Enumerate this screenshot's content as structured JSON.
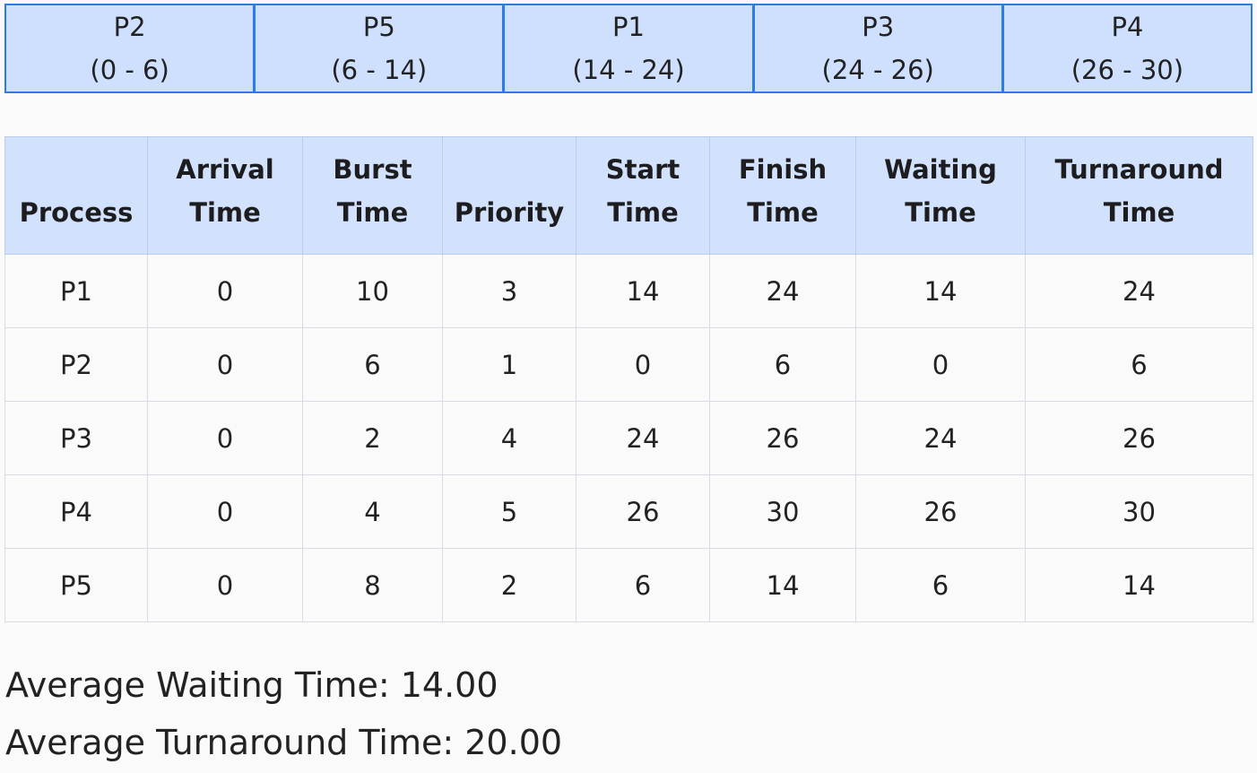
{
  "gantt": [
    {
      "process": "P2",
      "range": "(0 - 6)"
    },
    {
      "process": "P5",
      "range": "(6 - 14)"
    },
    {
      "process": "P1",
      "range": "(14 - 24)"
    },
    {
      "process": "P3",
      "range": "(24 - 26)"
    },
    {
      "process": "P4",
      "range": "(26 - 30)"
    }
  ],
  "table": {
    "headers": [
      {
        "l1": "",
        "l2": "Process"
      },
      {
        "l1": "Arrival",
        "l2": "Time"
      },
      {
        "l1": "Burst",
        "l2": "Time"
      },
      {
        "l1": "",
        "l2": "Priority"
      },
      {
        "l1": "Start",
        "l2": "Time"
      },
      {
        "l1": "Finish",
        "l2": "Time"
      },
      {
        "l1": "Waiting",
        "l2": "Time"
      },
      {
        "l1": "Turnaround",
        "l2": "Time"
      }
    ],
    "rows": [
      [
        "P1",
        "0",
        "10",
        "3",
        "14",
        "24",
        "14",
        "24"
      ],
      [
        "P2",
        "0",
        "6",
        "1",
        "0",
        "6",
        "0",
        "6"
      ],
      [
        "P3",
        "0",
        "2",
        "4",
        "24",
        "26",
        "24",
        "26"
      ],
      [
        "P4",
        "0",
        "4",
        "5",
        "26",
        "30",
        "26",
        "30"
      ],
      [
        "P5",
        "0",
        "8",
        "2",
        "6",
        "14",
        "6",
        "14"
      ]
    ]
  },
  "summary": {
    "avg_waiting": "Average Waiting Time: 14.00",
    "avg_turnaround": "Average Turnaround Time: 20.00"
  }
}
